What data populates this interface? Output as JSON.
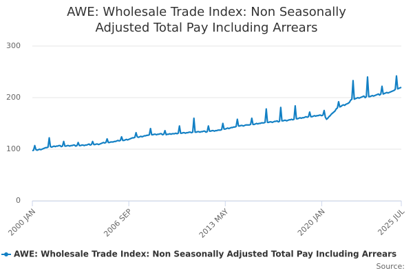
{
  "chart_data": {
    "type": "line",
    "title": "AWE: Wholesale Trade Index: Non Seasonally Adjusted Total Pay Including Arrears",
    "source": "Source:",
    "categories": [
      "2000 JAN",
      null,
      null,
      null,
      null,
      null,
      null,
      null,
      null,
      null,
      null,
      null,
      null,
      null,
      null,
      null,
      null,
      null,
      null,
      null,
      null,
      null,
      null,
      null,
      null,
      null,
      null,
      null,
      null,
      null,
      null,
      null,
      null,
      null,
      null,
      null,
      null,
      null,
      null,
      null,
      null,
      null,
      null,
      null,
      null,
      null,
      null,
      null,
      null,
      null,
      null,
      null,
      null,
      null,
      null,
      null,
      null,
      null,
      null,
      null,
      null,
      null,
      null,
      null,
      null,
      null,
      null,
      null,
      null,
      null,
      null,
      null,
      null,
      null,
      null,
      null,
      null,
      null,
      null,
      null,
      "2006 SEP",
      null,
      null,
      null,
      null,
      null,
      null,
      null,
      null,
      null,
      null,
      null,
      null,
      null,
      null,
      null,
      null,
      null,
      null,
      null,
      null,
      null,
      null,
      null,
      null,
      null,
      null,
      null,
      null,
      null,
      null,
      null,
      null,
      null,
      null,
      null,
      null,
      null,
      null,
      null,
      null,
      null,
      null,
      null,
      null,
      null,
      null,
      null,
      null,
      null,
      null,
      null,
      null,
      null,
      null,
      null,
      null,
      null,
      null,
      null,
      null,
      null,
      null,
      null,
      null,
      null,
      null,
      null,
      null,
      null,
      null,
      null,
      null,
      null,
      null,
      null,
      null,
      null,
      null,
      null,
      "2013 MAY",
      null,
      null,
      null,
      null,
      null,
      null,
      null,
      null,
      null,
      null,
      null,
      null,
      null,
      null,
      null,
      null,
      null,
      null,
      null,
      null,
      null,
      null,
      null,
      null,
      null,
      null,
      null,
      null,
      null,
      null,
      null,
      null,
      null,
      null,
      null,
      null,
      null,
      null,
      null,
      null,
      null,
      null,
      null,
      null,
      null,
      null,
      null,
      null,
      null,
      null,
      null,
      null,
      null,
      null,
      null,
      null,
      null,
      null,
      null,
      null,
      null,
      null,
      null,
      null,
      null,
      null,
      null,
      null,
      null,
      null,
      null,
      null,
      null,
      null,
      null,
      null,
      null,
      null,
      null,
      "2020 JAN",
      null,
      null,
      null,
      null,
      null,
      null,
      null,
      null,
      null,
      null,
      null,
      null,
      null,
      null,
      null,
      null,
      null,
      null,
      null,
      null,
      null,
      null,
      null,
      null,
      null,
      null,
      null,
      null,
      null,
      null,
      null,
      null,
      null,
      null,
      null,
      null,
      null,
      null,
      null,
      null,
      null,
      null,
      null,
      null,
      null,
      null,
      null,
      null,
      null,
      null,
      null,
      null,
      null,
      null,
      null,
      null,
      null,
      null,
      null,
      null,
      null,
      null,
      null,
      null,
      null,
      "2025 JUL"
    ],
    "series": [
      {
        "name": "AWE: Wholesale Trade Index: Non Seasonally Adjusted Total Pay Including Arrears",
        "color": "#1380c4",
        "values": [
          97,
          98,
          107,
          99,
          98,
          99,
          100,
          99,
          100,
          101,
          102,
          103,
          103,
          104,
          122,
          105,
          104,
          105,
          106,
          105,
          106,
          106,
          107,
          107,
          105,
          106,
          115,
          106,
          106,
          107,
          107,
          106,
          107,
          107,
          108,
          108,
          106,
          107,
          113,
          107,
          107,
          108,
          108,
          107,
          108,
          108,
          109,
          110,
          108,
          109,
          115,
          109,
          109,
          110,
          110,
          109,
          110,
          111,
          112,
          113,
          112,
          113,
          120,
          113,
          113,
          114,
          114,
          114,
          115,
          115,
          116,
          117,
          116,
          117,
          124,
          117,
          117,
          118,
          119,
          118,
          119,
          120,
          121,
          122,
          122,
          123,
          132,
          124,
          123,
          124,
          125,
          124,
          125,
          126,
          126,
          127,
          127,
          128,
          140,
          128,
          128,
          129,
          129,
          128,
          129,
          129,
          130,
          130,
          128,
          129,
          136,
          128,
          129,
          129,
          130,
          129,
          130,
          130,
          130,
          131,
          130,
          131,
          145,
          131,
          131,
          132,
          132,
          131,
          132,
          132,
          133,
          133,
          132,
          133,
          160,
          133,
          133,
          134,
          134,
          133,
          134,
          134,
          135,
          135,
          133,
          134,
          145,
          135,
          135,
          136,
          136,
          135,
          136,
          136,
          137,
          137,
          137,
          138,
          150,
          139,
          139,
          140,
          141,
          140,
          141,
          142,
          142,
          143,
          143,
          144,
          158,
          145,
          145,
          146,
          146,
          145,
          146,
          147,
          147,
          147,
          147,
          148,
          160,
          148,
          148,
          149,
          150,
          149,
          150,
          150,
          151,
          151,
          151,
          152,
          178,
          152,
          152,
          153,
          153,
          152,
          153,
          154,
          154,
          155,
          153,
          154,
          181,
          155,
          155,
          156,
          156,
          155,
          156,
          157,
          157,
          158,
          157,
          158,
          184,
          159,
          159,
          160,
          161,
          160,
          161,
          161,
          162,
          163,
          162,
          163,
          172,
          163,
          163,
          164,
          165,
          164,
          165,
          165,
          166,
          166,
          165,
          166,
          175,
          162,
          158,
          160,
          163,
          165,
          168,
          170,
          172,
          174,
          178,
          180,
          192,
          182,
          183,
          185,
          186,
          185,
          187,
          188,
          189,
          191,
          195,
          197,
          233,
          197,
          198,
          199,
          200,
          199,
          200,
          201,
          202,
          203,
          200,
          202,
          240,
          202,
          202,
          203,
          204,
          203,
          204,
          205,
          206,
          207,
          205,
          207,
          222,
          207,
          208,
          209,
          210,
          209,
          210,
          211,
          212,
          213,
          214,
          216,
          242,
          217,
          218,
          219,
          220
        ]
      }
    ],
    "ylim": [
      0,
      300
    ],
    "yticks": [
      0,
      100,
      200,
      300
    ],
    "grid": true
  }
}
